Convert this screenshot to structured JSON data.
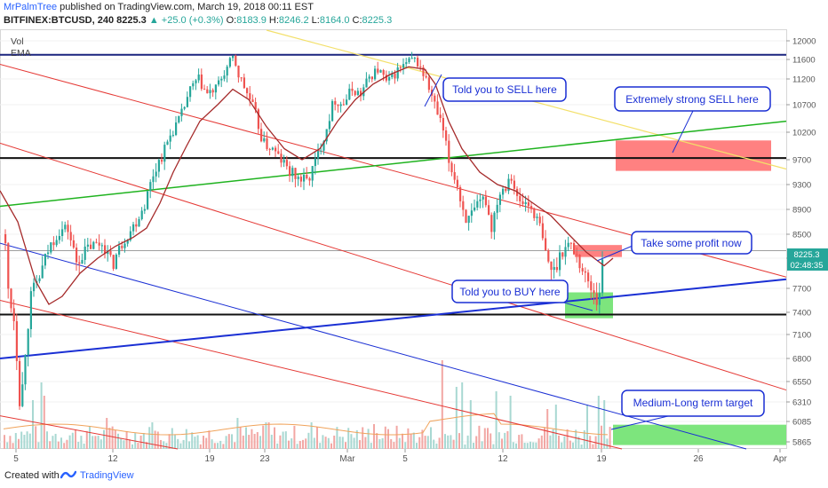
{
  "header": {
    "author": "MrPalmTree",
    "published": "published on TradingView.com, March 19, 2018 00:11 EST",
    "symbol": "BITFINEX:BTCUSD, 240",
    "last": "8225.3",
    "change": "▲ +25.0 (+0.3%)",
    "o_label": "O:",
    "o_value": "8183.9",
    "h_label": "H:",
    "h_value": "8246.2",
    "l_label": "L:",
    "l_value": "8164.0",
    "c_label": "C:",
    "c_value": "8225.3"
  },
  "indicators": {
    "vol": "Vol",
    "ema": "EMA"
  },
  "price_badge": {
    "price": "8225.3",
    "countdown": "02:48:35"
  },
  "colors": {
    "bull": "#26a69a",
    "bear": "#ef5350",
    "ema": "#a52a2a",
    "channel_red": "#e53935",
    "blue_line": "#1a2fd4",
    "green_line": "#1fb31f",
    "yellow_line": "#f3e06a",
    "sell_zone": "#ff6b6b",
    "buy_zone": "#66e066",
    "annotation": "#1a2fd4"
  },
  "annotations": {
    "sell1": "Told you to SELL here",
    "sell2": "Extremely strong SELL here",
    "profit": "Take some profit now",
    "buy": "Told you to BUY here",
    "target": "Medium-Long term target"
  },
  "chart_data": {
    "type": "candlestick",
    "y_ticks": [
      12000,
      11600,
      11200,
      10700,
      10200,
      9700,
      9300,
      8900,
      8500,
      8100,
      7700,
      7400,
      7100,
      6800,
      6550,
      6310,
      6085,
      5865
    ],
    "ylim": [
      5720,
      12130
    ],
    "x_ticks": [
      "5",
      "12",
      "19",
      "23",
      "Mar",
      "5",
      "12",
      "19",
      "26",
      "Apr"
    ],
    "horizontal_levels": [
      11700,
      9730,
      7370
    ],
    "price_line": 8225.3,
    "close_path": [
      [
        0,
        9250
      ],
      [
        3,
        8700
      ],
      [
        8,
        7700
      ],
      [
        15,
        7300
      ],
      [
        22,
        6200
      ],
      [
        28,
        7000
      ],
      [
        34,
        7600
      ],
      [
        45,
        7900
      ],
      [
        55,
        8300
      ],
      [
        65,
        8550
      ],
      [
        75,
        8600
      ],
      [
        85,
        8050
      ],
      [
        100,
        8300
      ],
      [
        115,
        8350
      ],
      [
        125,
        8000
      ],
      [
        138,
        8400
      ],
      [
        150,
        8650
      ],
      [
        162,
        9000
      ],
      [
        172,
        9500
      ],
      [
        182,
        9800
      ],
      [
        192,
        10200
      ],
      [
        202,
        10450
      ],
      [
        212,
        10950
      ],
      [
        222,
        11200
      ],
      [
        232,
        10900
      ],
      [
        242,
        11000
      ],
      [
        252,
        11350
      ],
      [
        262,
        11650
      ],
      [
        267,
        11300
      ],
      [
        275,
        11000
      ],
      [
        285,
        10600
      ],
      [
        295,
        10000
      ],
      [
        305,
        9900
      ],
      [
        315,
        9700
      ],
      [
        325,
        9500
      ],
      [
        335,
        9400
      ],
      [
        345,
        9350
      ],
      [
        355,
        9700
      ],
      [
        365,
        10200
      ],
      [
        375,
        10800
      ],
      [
        385,
        10700
      ],
      [
        395,
        11000
      ],
      [
        405,
        10900
      ],
      [
        415,
        11250
      ],
      [
        425,
        11400
      ],
      [
        435,
        11100
      ],
      [
        445,
        11350
      ],
      [
        455,
        11500
      ],
      [
        465,
        11600
      ],
      [
        470,
        11500
      ],
      [
        478,
        11200
      ],
      [
        488,
        10700
      ],
      [
        498,
        10200
      ],
      [
        505,
        9600
      ],
      [
        512,
        9400
      ],
      [
        518,
        9000
      ],
      [
        525,
        8700
      ],
      [
        535,
        8900
      ],
      [
        545,
        9100
      ],
      [
        552,
        8600
      ],
      [
        560,
        9150
      ],
      [
        568,
        9300
      ],
      [
        574,
        9500
      ],
      [
        582,
        9000
      ],
      [
        592,
        9000
      ],
      [
        600,
        8850
      ],
      [
        607,
        8600
      ],
      [
        614,
        8100
      ],
      [
        622,
        7900
      ],
      [
        630,
        8200
      ],
      [
        640,
        8350
      ],
      [
        648,
        8150
      ],
      [
        656,
        7900
      ],
      [
        662,
        7750
      ],
      [
        668,
        7650
      ],
      [
        672,
        7500
      ],
      [
        676,
        7950
      ],
      [
        680,
        8225
      ]
    ],
    "ema_path": [
      [
        0,
        9200
      ],
      [
        20,
        8700
      ],
      [
        40,
        7800
      ],
      [
        55,
        7500
      ],
      [
        70,
        7600
      ],
      [
        90,
        7900
      ],
      [
        110,
        8100
      ],
      [
        130,
        8300
      ],
      [
        150,
        8450
      ],
      [
        165,
        8600
      ],
      [
        180,
        9000
      ],
      [
        195,
        9500
      ],
      [
        210,
        9950
      ],
      [
        225,
        10400
      ],
      [
        245,
        10700
      ],
      [
        262,
        11000
      ],
      [
        280,
        10800
      ],
      [
        300,
        10300
      ],
      [
        320,
        9900
      ],
      [
        340,
        9700
      ],
      [
        360,
        9900
      ],
      [
        380,
        10400
      ],
      [
        400,
        10800
      ],
      [
        420,
        11100
      ],
      [
        440,
        11300
      ],
      [
        460,
        11450
      ],
      [
        478,
        11400
      ],
      [
        490,
        11100
      ],
      [
        505,
        10400
      ],
      [
        520,
        9900
      ],
      [
        540,
        9500
      ],
      [
        560,
        9300
      ],
      [
        580,
        9200
      ],
      [
        600,
        9000
      ],
      [
        620,
        8800
      ],
      [
        640,
        8500
      ],
      [
        660,
        8200
      ],
      [
        680,
        8000
      ],
      [
        690,
        8100
      ]
    ],
    "red_channel": [
      [
        [
          0,
          11500
        ],
        [
          885,
          7850
        ]
      ],
      [
        [
          0,
          10000
        ],
        [
          885,
          6450
        ]
      ],
      [
        [
          0,
          7550
        ],
        [
          700,
          5720
        ]
      ],
      [
        [
          0,
          6150
        ],
        [
          200,
          5720
        ]
      ]
    ],
    "blue_lines": [
      {
        "kind": "bold",
        "from": [
          0,
          6800
        ],
        "to": [
          885,
          7820
        ]
      },
      {
        "kind": "thin",
        "from": [
          0,
          8350
        ],
        "to": [
          840,
          5720
        ]
      }
    ],
    "green_line": {
      "from": [
        0,
        8950
      ],
      "to": [
        885,
        10400
      ]
    },
    "yellow_line": {
      "from": [
        300,
        12130
      ],
      "to": [
        885,
        9550
      ]
    },
    "zones": [
      {
        "kind": "sell",
        "x": [
          693,
          868
        ],
        "y": [
          9520,
          10050
        ]
      },
      {
        "kind": "sell",
        "x": [
          647,
          700
        ],
        "y": [
          8120,
          8320
        ]
      },
      {
        "kind": "buy",
        "x": [
          636,
          690
        ],
        "y": [
          7320,
          7650
        ]
      },
      {
        "kind": "buy",
        "x": [
          690,
          885
        ],
        "y": [
          5800,
          6050
        ]
      }
    ],
    "volume_spikes": [
      [
        35,
        0.55
      ],
      [
        45,
        0.75
      ],
      [
        48,
        0.6
      ],
      [
        120,
        0.35
      ],
      [
        170,
        0.3
      ],
      [
        265,
        0.35
      ],
      [
        300,
        0.3
      ],
      [
        350,
        0.3
      ],
      [
        420,
        0.28
      ],
      [
        498,
        1.0
      ],
      [
        512,
        0.7
      ],
      [
        520,
        0.75
      ],
      [
        530,
        0.55
      ],
      [
        558,
        0.65
      ],
      [
        575,
        0.6
      ],
      [
        615,
        0.45
      ],
      [
        625,
        0.5
      ],
      [
        660,
        0.5
      ],
      [
        672,
        0.6
      ],
      [
        678,
        0.55
      ]
    ]
  },
  "footer": {
    "created_with": "Created with",
    "brand": "TradingView"
  }
}
